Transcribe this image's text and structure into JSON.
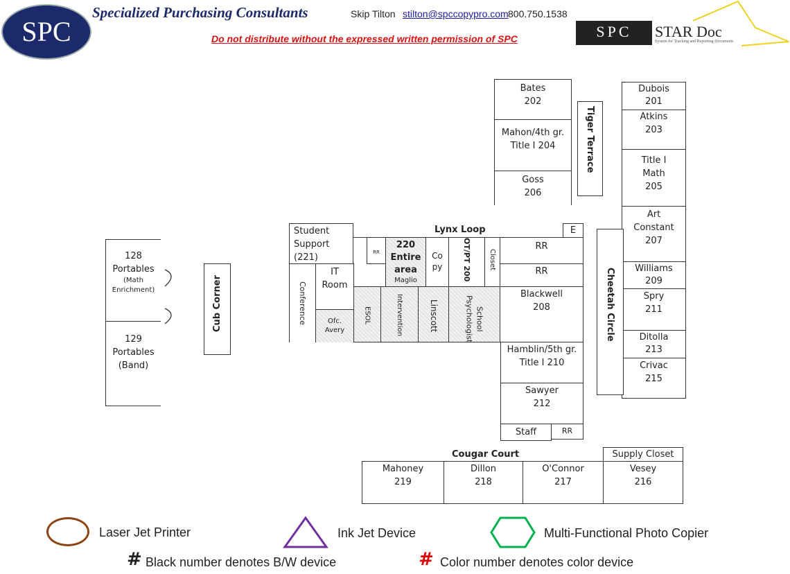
{
  "header": {
    "logo": "SPC",
    "company": "Specialized Purchasing Consultants",
    "contact_name": "Skip Tilton",
    "email": "stilton@spccopypro.com",
    "phone": "800.750.1538",
    "warning": "Do not distribute without the expressed written permission of SPC",
    "star_logo_left": "SPC",
    "star_logo_right": "STAR Doc",
    "star_tagline": "System for Tracking and Reporting Documents"
  },
  "rooms": {
    "bates": "Bates 202",
    "mahon": "Mahon/4th gr. Title I 204",
    "goss": "Goss 206",
    "tiger": "Tiger Terrace",
    "dubois": "Dubois 201",
    "atkins": "Atkins 203",
    "titlemath": "Title I Math 205",
    "art": "Art Constant 207",
    "williams": "Williams 209",
    "spry": "Spry 211",
    "ditolla": "Ditolla 213",
    "crivac": "Crivac 215",
    "cheetah": "Cheetah Circle",
    "student": "Student Support (221)",
    "lynx": "Lynx Loop",
    "e": "E",
    "rr_small": "RR",
    "r220": "220 Entire area",
    "maglio": "Maglio",
    "copy": "Co py",
    "otpt": "OT/PT 200",
    "closet": "Closet",
    "rr1": "RR",
    "rr2": "RR",
    "blackwell": "Blackwell 208",
    "conference": "Conference",
    "it": "IT Room",
    "avery": "Ofc. Avery",
    "esol": "ESOL",
    "intervention": "Intervention",
    "linscott": "Linscott",
    "psych": "School Psychologist",
    "hamblin": "Hamblin/5th gr. Title I 210",
    "sawyer": "Sawyer 212",
    "staff": "Staff",
    "rr3": "RR",
    "cougar": "Cougar Court",
    "supply": "Supply Closet",
    "mahoney": "Mahoney 219",
    "dillon": "Dillon 218",
    "oconnor": "O'Connor 217",
    "vesey": "Vesey 216",
    "p128": "128 Portables",
    "p128sub": "(Math Enrichment)",
    "p129": "129 Portables (Band)",
    "cub": "Cub Corner"
  },
  "legend": {
    "laser": "Laser Jet Printer",
    "inkjet": "Ink Jet Device",
    "mfp": "Multi-Functional Photo Copier",
    "hash": "#",
    "bw": "Black number denotes B/W device",
    "color": "Color number denotes color device",
    "colors": {
      "laser": "#8B4513",
      "inkjet": "#7030A0",
      "mfp": "#00B050",
      "color_hash": "#E00000"
    }
  }
}
